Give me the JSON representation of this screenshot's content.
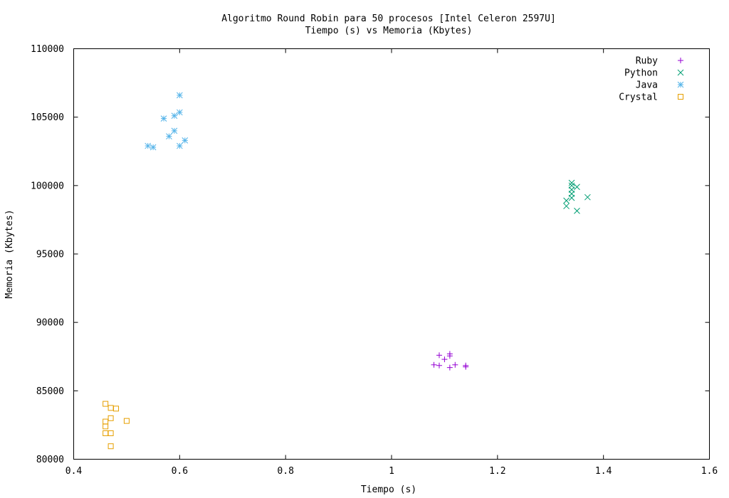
{
  "chart_data": {
    "type": "scatter",
    "title": "Algoritmo Round Robin para 50 procesos [Intel Celeron 2597U]",
    "subtitle": "Tiempo (s) vs Memoria (Kbytes)",
    "xlabel": "Tiempo (s)",
    "ylabel": "Memoria (Kbytes)",
    "xlim": [
      0.4,
      1.6
    ],
    "ylim": [
      80000,
      110000
    ],
    "x_ticks": [
      0.4,
      0.6,
      0.8,
      1,
      1.2,
      1.4,
      1.6
    ],
    "x_tick_labels": [
      "0.4",
      "0.6",
      "0.8",
      "1",
      "1.2",
      "1.4",
      "1.6"
    ],
    "y_ticks": [
      80000,
      85000,
      90000,
      95000,
      100000,
      105000,
      110000
    ],
    "y_tick_labels": [
      "80000",
      "85000",
      "90000",
      "95000",
      "100000",
      "105000",
      "110000"
    ],
    "grid": false,
    "legend_position": "top-right",
    "series": [
      {
        "name": "Ruby",
        "color": "#9400d3",
        "marker": "plus",
        "points": [
          [
            1.08,
            86900
          ],
          [
            1.09,
            86850
          ],
          [
            1.09,
            87600
          ],
          [
            1.1,
            87300
          ],
          [
            1.11,
            87550
          ],
          [
            1.11,
            87700
          ],
          [
            1.11,
            86700
          ],
          [
            1.12,
            86900
          ],
          [
            1.14,
            86750
          ],
          [
            1.14,
            86850
          ]
        ]
      },
      {
        "name": "Python",
        "color": "#009e73",
        "marker": "cross",
        "points": [
          [
            1.33,
            98500
          ],
          [
            1.33,
            98900
          ],
          [
            1.34,
            99100
          ],
          [
            1.34,
            99400
          ],
          [
            1.34,
            99700
          ],
          [
            1.34,
            100000
          ],
          [
            1.34,
            100200
          ],
          [
            1.35,
            99900
          ],
          [
            1.35,
            98150
          ],
          [
            1.37,
            99150
          ]
        ]
      },
      {
        "name": "Java",
        "color": "#56b4e9",
        "marker": "star",
        "points": [
          [
            0.54,
            102900
          ],
          [
            0.55,
            102800
          ],
          [
            0.57,
            104900
          ],
          [
            0.58,
            103600
          ],
          [
            0.59,
            105100
          ],
          [
            0.59,
            104000
          ],
          [
            0.6,
            106600
          ],
          [
            0.6,
            105350
          ],
          [
            0.6,
            102900
          ],
          [
            0.61,
            103300
          ]
        ]
      },
      {
        "name": "Crystal",
        "color": "#e69f00",
        "marker": "square",
        "points": [
          [
            0.46,
            84050
          ],
          [
            0.46,
            82750
          ],
          [
            0.46,
            82400
          ],
          [
            0.46,
            81900
          ],
          [
            0.47,
            83750
          ],
          [
            0.47,
            83000
          ],
          [
            0.47,
            81900
          ],
          [
            0.47,
            80950
          ],
          [
            0.48,
            83700
          ],
          [
            0.5,
            82800
          ]
        ]
      }
    ]
  }
}
